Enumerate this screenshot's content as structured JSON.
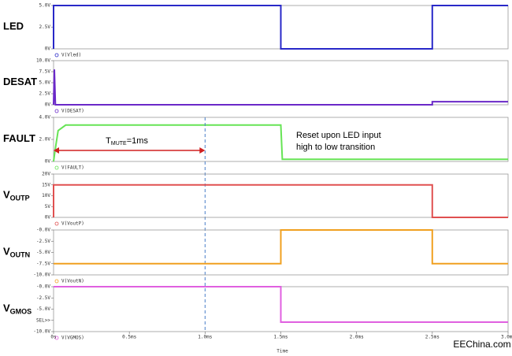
{
  "chart_data": [
    {
      "type": "line",
      "ylabel": "LED",
      "xlim": [
        0,
        3.0
      ],
      "ylim": [
        0,
        5.0
      ],
      "yticks": [
        {
          "value": 0,
          "label": "0V"
        },
        {
          "value": 2.5,
          "label": "2.5V"
        },
        {
          "value": 5.0,
          "label": "5.0V"
        }
      ],
      "x": [
        0,
        0,
        1.5,
        1.5,
        2.5,
        2.5,
        3.0
      ],
      "series": [
        {
          "name": "V(Vled)",
          "color": "#2828c8",
          "values": [
            0,
            5,
            5,
            0,
            0,
            5,
            5
          ]
        }
      ]
    },
    {
      "type": "line",
      "ylabel": "DESAT",
      "xlim": [
        0,
        3.0
      ],
      "ylim": [
        0,
        10.0
      ],
      "yticks": [
        {
          "value": 0,
          "label": "0V"
        },
        {
          "value": 2.5,
          "label": "2.5V"
        },
        {
          "value": 5.0,
          "label": "5.0V"
        },
        {
          "value": 7.5,
          "label": "7.5V"
        },
        {
          "value": 10.0,
          "label": "10.0V"
        }
      ],
      "x": [
        0,
        0.005,
        0.012,
        2.5,
        2.5,
        3.0
      ],
      "series": [
        {
          "name": "V(DESAT)",
          "color": "#6a28c8",
          "values": [
            0,
            8,
            0,
            0,
            0.7,
            0.7
          ]
        }
      ]
    },
    {
      "type": "line",
      "ylabel": "FAULT",
      "xlim": [
        0,
        3.0
      ],
      "ylim": [
        0,
        4.0
      ],
      "yticks": [
        {
          "value": 0,
          "label": "0V"
        },
        {
          "value": 2.0,
          "label": "2.0V"
        },
        {
          "value": 4.0,
          "label": "4.0V"
        }
      ],
      "x": [
        0,
        0.01,
        0.03,
        0.08,
        1.5,
        1.51,
        3.0
      ],
      "series": [
        {
          "name": "V(FAULT)",
          "color": "#66e455",
          "values": [
            0,
            1.0,
            2.8,
            3.3,
            3.3,
            0.2,
            0.2
          ]
        }
      ],
      "annotation": {
        "label_main": "T",
        "label_sub": "MUTE",
        "label_rest": "=1ms",
        "x_start": 0,
        "x_end": 1.0
      },
      "note": [
        "Reset upon LED input",
        "high to low transition"
      ]
    },
    {
      "type": "line",
      "ylabel": "V",
      "ylabel_sub": "OUTP",
      "xlim": [
        0,
        3.0
      ],
      "ylim": [
        0,
        20
      ],
      "yticks": [
        {
          "value": 0,
          "label": "0V"
        },
        {
          "value": 5,
          "label": "5V"
        },
        {
          "value": 10,
          "label": "10V"
        },
        {
          "value": 15,
          "label": "15V"
        },
        {
          "value": 20,
          "label": "20V"
        }
      ],
      "x": [
        0,
        0,
        2.5,
        2.5,
        3.0
      ],
      "series": [
        {
          "name": "V(VoutP)",
          "color": "#e05050",
          "values": [
            0,
            15,
            15,
            0,
            0
          ]
        }
      ]
    },
    {
      "type": "line",
      "ylabel": "V",
      "ylabel_sub": "OUTN",
      "xlim": [
        0,
        3.0
      ],
      "ylim": [
        -10.0,
        0
      ],
      "yticks": [
        {
          "value": 0,
          "label": "-0.0V"
        },
        {
          "value": -2.5,
          "label": "-2.5V"
        },
        {
          "value": -5.0,
          "label": "-5.0V"
        },
        {
          "value": -7.5,
          "label": "-7.5V"
        },
        {
          "value": -10.0,
          "label": "-10.0V"
        }
      ],
      "x": [
        0,
        1.5,
        1.5,
        2.5,
        2.5,
        3.0
      ],
      "series": [
        {
          "name": "V(VoutN)",
          "color": "#f0a020",
          "values": [
            -7.5,
            -7.5,
            0,
            0,
            -7.5,
            -7.5
          ]
        }
      ]
    },
    {
      "type": "line",
      "ylabel": "V",
      "ylabel_sub": "GMOS",
      "xlim": [
        0,
        3.0
      ],
      "ylim": [
        -10.0,
        0
      ],
      "yticks": [
        {
          "value": 0,
          "label": "-0.0V"
        },
        {
          "value": -2.5,
          "label": "-2.5V"
        },
        {
          "value": -5.0,
          "label": "-5.0V"
        },
        {
          "value": -7.5,
          "label": "SEL>>"
        },
        {
          "value": -10.0,
          "label": "-10.0V"
        }
      ],
      "x": [
        0,
        1.5,
        1.5,
        3.0
      ],
      "series": [
        {
          "name": "V(VGMOS)",
          "color": "#e060e0",
          "values": [
            0,
            0,
            -7.9,
            -7.9
          ]
        }
      ],
      "xlabel": "Time",
      "xticks": [
        {
          "value": 0,
          "label": "0s"
        },
        {
          "value": 0.5,
          "label": "0.5ms"
        },
        {
          "value": 1.0,
          "label": "1.0ms"
        },
        {
          "value": 1.5,
          "label": "1.5ms"
        },
        {
          "value": 2.0,
          "label": "2.0ms"
        },
        {
          "value": 2.5,
          "label": "2.5ms"
        },
        {
          "value": 3.0,
          "label": "3.0ms"
        }
      ]
    }
  ],
  "watermark": "EEChina.com"
}
